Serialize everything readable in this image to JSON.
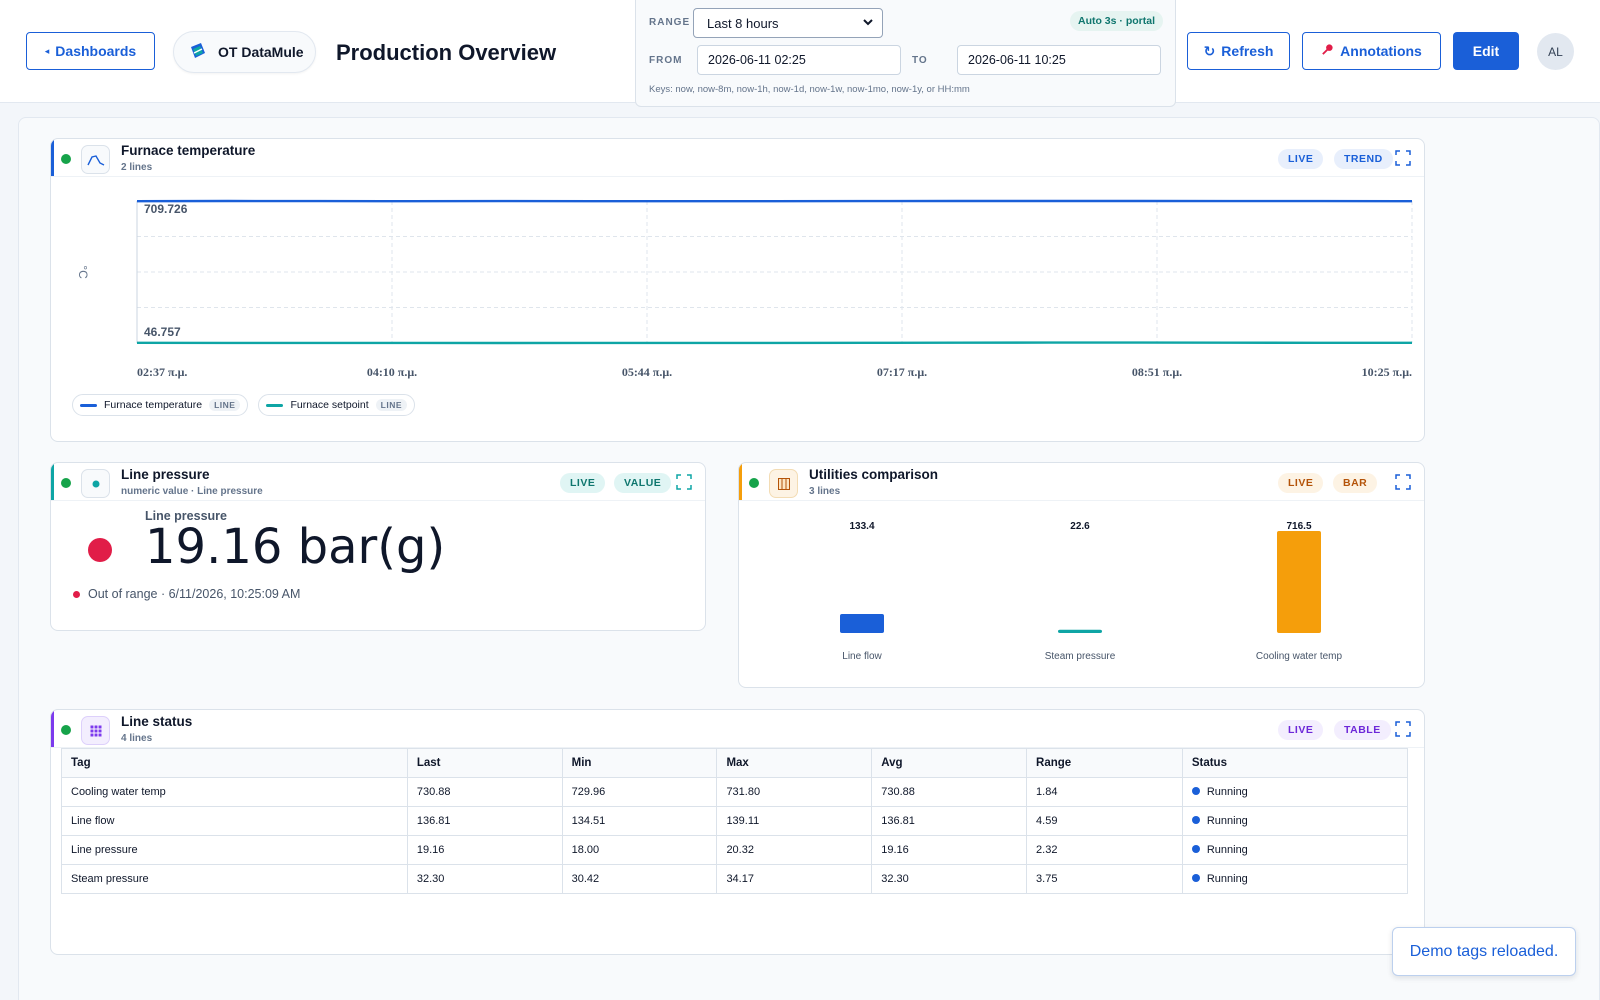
{
  "header": {
    "back_label": "Dashboards",
    "brand": "OT DataMule",
    "title": "Production Overview",
    "range": {
      "range_label": "RANGE",
      "range_value": "Last 8 hours",
      "auto_badge": "Auto 3s · portal",
      "from_label": "FROM",
      "from_value": "2026-06-11 02:25",
      "to_label": "TO",
      "to_value": "2026-06-11 10:25",
      "keys_hint": "Keys: now, now-8m, now-1h, now-1d, now-1w, now-1mo, now-1y, or HH:mm"
    },
    "refresh_label": "Refresh",
    "annotations_label": "Annotations",
    "edit_label": "Edit",
    "avatar_initials": "AL"
  },
  "colors": {
    "primary": "#1a5fd8",
    "teal": "#0ea5a5",
    "orange": "#f59e0b",
    "purple": "#7c3aed",
    "live_green": "#16a34a",
    "alarm_red": "#e11d48"
  },
  "panels": {
    "furnace": {
      "title": "Furnace temperature",
      "subtitle": "2 lines",
      "badge_live": "LIVE",
      "badge_type": "TREND",
      "icon": "trend-icon",
      "legend": [
        {
          "name": "Furnace temperature",
          "tag": "LINE",
          "color": "#1a5fd8"
        },
        {
          "name": "Furnace setpoint",
          "tag": "LINE",
          "color": "#0ea5a5"
        }
      ]
    },
    "pressure": {
      "title": "Line pressure",
      "subtitle": "numeric value · Line pressure",
      "badge_live": "LIVE",
      "badge_type": "VALUE",
      "icon": "dot-icon",
      "value_label": "Line pressure",
      "value": "19.16 bar(g)",
      "status_text": "Out of range · 6/11/2026, 10:25:09 AM"
    },
    "utilities": {
      "title": "Utilities comparison",
      "subtitle": "3 lines",
      "badge_live": "LIVE",
      "badge_type": "BAR",
      "icon": "bar-icon"
    },
    "status": {
      "title": "Line status",
      "subtitle": "4 lines",
      "badge_live": "LIVE",
      "badge_type": "TABLE",
      "icon": "grid-icon",
      "columns": [
        "Tag",
        "Last",
        "Min",
        "Max",
        "Avg",
        "Range",
        "Status"
      ],
      "rows": [
        [
          "Cooling water temp",
          "730.88",
          "729.96",
          "731.80",
          "730.88",
          "1.84",
          "Running"
        ],
        [
          "Line flow",
          "136.81",
          "134.51",
          "139.11",
          "136.81",
          "4.59",
          "Running"
        ],
        [
          "Line pressure",
          "19.16",
          "18.00",
          "20.32",
          "19.16",
          "2.32",
          "Running"
        ],
        [
          "Steam pressure",
          "32.30",
          "30.42",
          "34.17",
          "32.30",
          "3.75",
          "Running"
        ]
      ]
    }
  },
  "chart_data": [
    {
      "type": "line",
      "ylabel": "°C",
      "y_extent_labels": [
        "709.726",
        "46.757"
      ],
      "ylim": [
        46.757,
        709.726
      ],
      "x_ticks": [
        "02:37 π.μ.",
        "04:10 π.μ.",
        "05:44 π.μ.",
        "07:17 π.μ.",
        "08:51 π.μ.",
        "10:25 π.μ."
      ],
      "grid": true,
      "legend_position": "bottom-left",
      "series": [
        {
          "name": "Furnace temperature",
          "color": "#1a5fd8",
          "values": [
            709.0,
            709.6,
            709.4,
            708.9,
            709.1,
            708.8,
            708.6,
            708.9,
            709.2,
            709.5,
            709.7,
            709.6,
            709.4,
            709.3,
            709.0
          ]
        },
        {
          "name": "Furnace setpoint",
          "color": "#0ea5a5",
          "values": [
            47.5,
            47.4,
            47.2,
            47.0,
            46.9,
            47.0,
            47.1,
            47.3,
            47.8,
            48.2,
            48.4,
            48.5,
            48.2,
            47.8,
            47.5
          ]
        }
      ]
    },
    {
      "type": "bar",
      "categories": [
        "Line flow",
        "Steam pressure",
        "Cooling water temp"
      ],
      "values": [
        133.4,
        22.6,
        716.5
      ],
      "value_labels": [
        "133.4",
        "22.6",
        "716.5"
      ],
      "colors": [
        "#1a5fd8",
        "#0ea5a5",
        "#f59e0b"
      ],
      "ylim": [
        0,
        716.5
      ]
    }
  ],
  "toast": "Demo tags reloaded."
}
